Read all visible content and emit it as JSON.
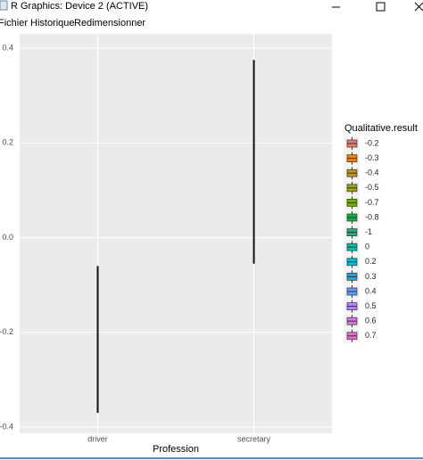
{
  "window": {
    "title": "R Graphics: Device 2 (ACTIVE)",
    "menu": [
      "Fichier",
      "Historique",
      "Redimensionner"
    ]
  },
  "chart_data": {
    "type": "range",
    "x_label": "Profession",
    "categories": [
      "driver",
      "secretary"
    ],
    "low": [
      -0.37,
      -0.055
    ],
    "high": [
      -0.06,
      0.375
    ],
    "ylim": [
      -0.413,
      0.43
    ],
    "yticks": [
      {
        "value": 0.4,
        "label": "0.4"
      },
      {
        "value": 0.2,
        "label": "0.2"
      },
      {
        "value": 0,
        "label": "0.0"
      },
      {
        "value": -0.2,
        "label": "-0.2"
      },
      {
        "value": -0.4,
        "label": "-0.4"
      }
    ],
    "grid": true,
    "legend": {
      "title": "Qualitative.result",
      "entries": [
        {
          "label": "-0.2",
          "color": "#F8766D"
        },
        {
          "label": "-0.3",
          "color": "#E58700"
        },
        {
          "label": "-0.4",
          "color": "#C99800"
        },
        {
          "label": "-0.5",
          "color": "#A3A500"
        },
        {
          "label": "-0.7",
          "color": "#6BB100"
        },
        {
          "label": "-0.8",
          "color": "#00BA38"
        },
        {
          "label": "-1",
          "color": "#00BF7D"
        },
        {
          "label": "0",
          "color": "#00C0AF"
        },
        {
          "label": "0.2",
          "color": "#00BCD8"
        },
        {
          "label": "0.3",
          "color": "#00B0F6"
        },
        {
          "label": "0.4",
          "color": "#619CFF"
        },
        {
          "label": "0.5",
          "color": "#B983FF"
        },
        {
          "label": "0.6",
          "color": "#E76BF3"
        },
        {
          "label": "0.7",
          "color": "#FD61D1"
        }
      ]
    }
  }
}
